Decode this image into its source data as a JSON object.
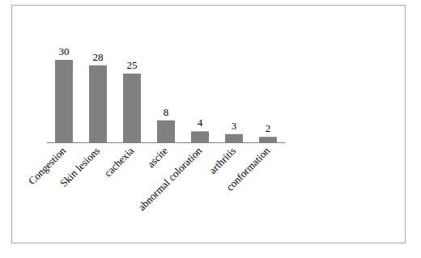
{
  "chart_data": {
    "type": "bar",
    "categories": [
      "Congestion",
      "Skin lesions",
      "cachexia",
      "ascite",
      "abnormal coloration",
      "arthritis",
      "conformation"
    ],
    "values": [
      30,
      28,
      25,
      8,
      4,
      3,
      2
    ],
    "color": "#808080",
    "data_labels": true,
    "tick_labels": "x",
    "grid": false
  }
}
